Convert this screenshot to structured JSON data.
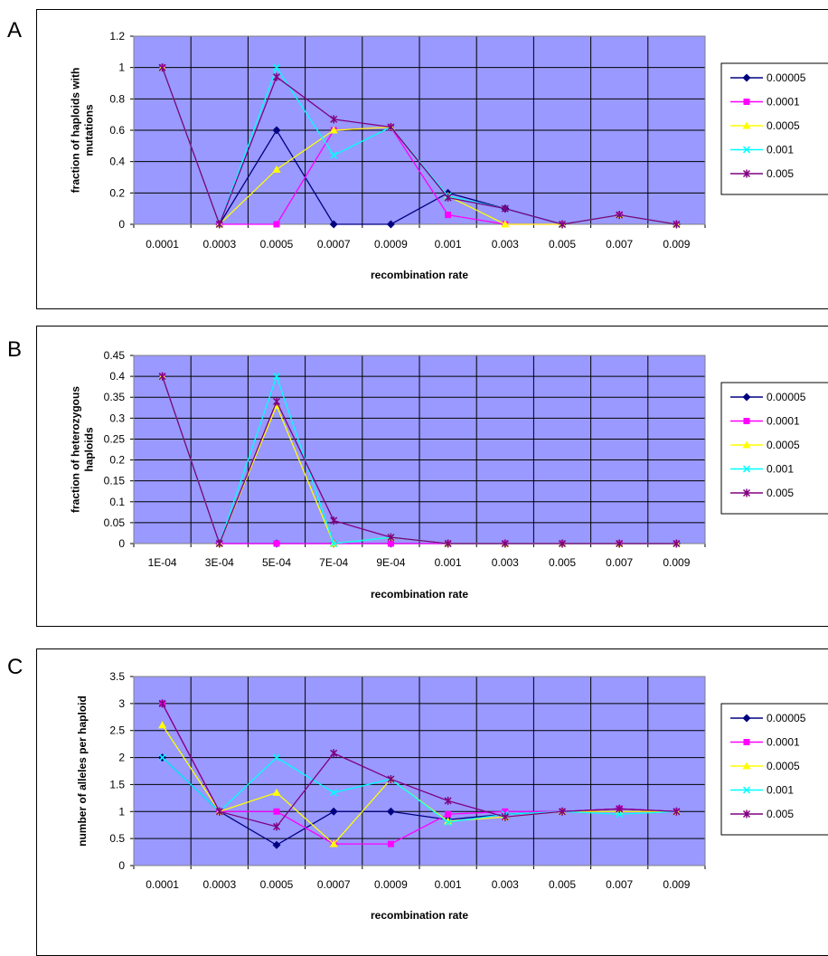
{
  "chart_data": [
    {
      "panel": "A",
      "type": "line",
      "xlabel": "recombination rate",
      "ylabel": [
        "fraction of haploids with",
        "mutations"
      ],
      "categories": [
        "0.0001",
        "0.0003",
        "0.0005",
        "0.0007",
        "0.0009",
        "0.001",
        "0.003",
        "0.005",
        "0.007",
        "0.009"
      ],
      "ylim": [
        0,
        1.2
      ],
      "yticks": [
        "0",
        "0.2",
        "0.4",
        "0.6",
        "0.8",
        "1",
        "1.2"
      ],
      "grid": true,
      "legend_position": "right",
      "series": [
        {
          "name": "0.00005",
          "color": "#000080",
          "marker": "diamond",
          "values": [
            1,
            0,
            0.6,
            0,
            0,
            0.2,
            0.1,
            0,
            0.06,
            0
          ]
        },
        {
          "name": "0.0001",
          "color": "#FF00FF",
          "marker": "square",
          "values": [
            1,
            0,
            0,
            0.6,
            0.62,
            0.06,
            0,
            0,
            0.06,
            0
          ]
        },
        {
          "name": "0.0005",
          "color": "#FFFF00",
          "marker": "triangle",
          "values": [
            1,
            0,
            0.35,
            0.6,
            0.62,
            0.18,
            0,
            0,
            0.06,
            0
          ]
        },
        {
          "name": "0.001",
          "color": "#00FFFF",
          "marker": "x",
          "values": [
            1,
            0,
            1.0,
            0.44,
            0.62,
            0.18,
            0.1,
            0,
            0.06,
            0
          ]
        },
        {
          "name": "0.005",
          "color": "#800080",
          "marker": "star",
          "values": [
            1,
            0,
            0.94,
            0.67,
            0.62,
            0.17,
            0.1,
            0,
            0.06,
            0
          ]
        }
      ]
    },
    {
      "panel": "B",
      "type": "line",
      "xlabel": "recombination rate",
      "ylabel": [
        "fraction of heterozygous",
        "haploids"
      ],
      "categories": [
        "1E-04",
        "3E-04",
        "5E-04",
        "7E-04",
        "9E-04",
        "0.001",
        "0.003",
        "0.005",
        "0.007",
        "0.009"
      ],
      "ylim": [
        0,
        0.45
      ],
      "yticks": [
        "0",
        "0.05",
        "0.1",
        "0.15",
        "0.2",
        "0.25",
        "0.3",
        "0.35",
        "0.4",
        "0.45"
      ],
      "grid": true,
      "legend_position": "right",
      "series": [
        {
          "name": "0.00005",
          "color": "#000080",
          "marker": "diamond",
          "values": [
            0.4,
            0,
            0,
            0,
            0,
            0,
            0,
            0,
            0,
            0
          ]
        },
        {
          "name": "0.0001",
          "color": "#FF00FF",
          "marker": "square",
          "values": [
            0.4,
            0,
            0,
            0,
            0,
            0,
            0,
            0,
            0,
            0
          ]
        },
        {
          "name": "0.0005",
          "color": "#FFFF00",
          "marker": "triangle",
          "values": [
            0.4,
            0,
            0.33,
            0,
            0.015,
            0,
            0,
            0,
            0,
            0
          ]
        },
        {
          "name": "0.001",
          "color": "#00FFFF",
          "marker": "x",
          "values": [
            0.4,
            0,
            0.4,
            0,
            0.015,
            0,
            0,
            0,
            0,
            0
          ]
        },
        {
          "name": "0.005",
          "color": "#800080",
          "marker": "star",
          "values": [
            0.4,
            0,
            0.34,
            0.055,
            0.015,
            0,
            0,
            0,
            0,
            0
          ]
        }
      ]
    },
    {
      "panel": "C",
      "type": "line",
      "xlabel": "recombination rate",
      "ylabel": [
        "number of alleles per haploid"
      ],
      "categories": [
        "0.0001",
        "0.0003",
        "0.0005",
        "0.0007",
        "0.0009",
        "0.001",
        "0.003",
        "0.005",
        "0.007",
        "0.009"
      ],
      "ylim": [
        0,
        3.5
      ],
      "yticks": [
        "0",
        "0.5",
        "1",
        "1.5",
        "2",
        "2.5",
        "3",
        "3.5"
      ],
      "grid": true,
      "legend_position": "right",
      "series": [
        {
          "name": "0.00005",
          "color": "#000080",
          "marker": "diamond",
          "values": [
            2,
            1,
            0.38,
            1,
            1,
            0.85,
            0.95,
            1,
            1.05,
            1
          ]
        },
        {
          "name": "0.0001",
          "color": "#FF00FF",
          "marker": "square",
          "values": [
            3,
            1,
            1,
            0.4,
            0.4,
            0.95,
            1,
            1,
            1.05,
            1
          ]
        },
        {
          "name": "0.0005",
          "color": "#FFFF00",
          "marker": "triangle",
          "values": [
            2.6,
            1,
            1.35,
            0.4,
            1.6,
            0.82,
            0.9,
            1,
            1,
            1
          ]
        },
        {
          "name": "0.001",
          "color": "#00FFFF",
          "marker": "x",
          "values": [
            2,
            1,
            2,
            1.35,
            1.6,
            0.8,
            0.95,
            1,
            0.95,
            1
          ]
        },
        {
          "name": "0.005",
          "color": "#800080",
          "marker": "star",
          "values": [
            3,
            1,
            0.72,
            2.08,
            1.6,
            1.2,
            0.9,
            1,
            1.05,
            1
          ]
        }
      ]
    }
  ]
}
